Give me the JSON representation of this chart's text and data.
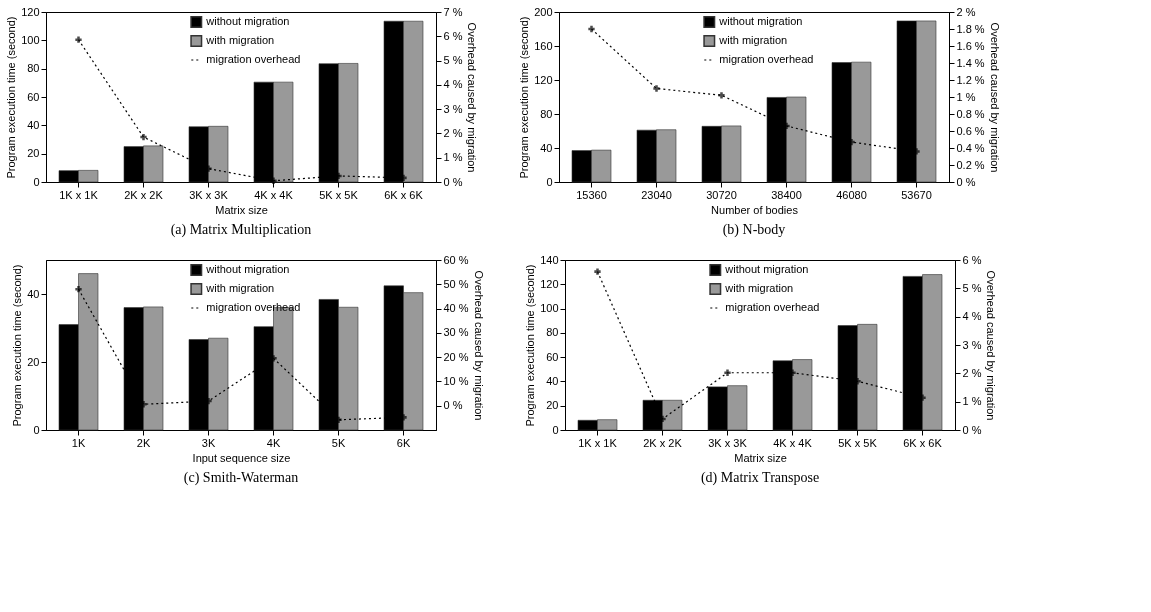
{
  "chart_data": [
    {
      "type": "bar",
      "title": "(a) Matrix Multiplication",
      "xlabel": "Matrix size",
      "ylabel": "Program execution time (second)",
      "y2label": "Overhead caused by migration",
      "categories": [
        "1K x 1K",
        "2K x 2K",
        "3K x 3K",
        "4K x 4K",
        "5K x 5K",
        "6K x 6K"
      ],
      "series": [
        {
          "name": "without migration",
          "color": "#000000",
          "values": [
            8,
            25,
            39,
            70.5,
            83.5,
            113.5
          ]
        },
        {
          "name": "with migration",
          "color": "#999999",
          "values": [
            8.2,
            25.5,
            39.3,
            70.5,
            83.7,
            113.5
          ]
        },
        {
          "name": "migration overhead",
          "color": "#000000",
          "type": "line",
          "axis": "y2",
          "values": [
            5.86,
            1.85,
            0.55,
            0.05,
            0.25,
            0.17
          ]
        }
      ],
      "ylim": [
        0,
        120
      ],
      "yticks": [
        0,
        20,
        40,
        60,
        80,
        100,
        120
      ],
      "y2lim": [
        0,
        7
      ],
      "y2ticks": [
        {
          "value": 0,
          "label": "0 %"
        },
        {
          "value": 1,
          "label": "1 %"
        },
        {
          "value": 2,
          "label": "2 %"
        },
        {
          "value": 3,
          "label": "3 %"
        },
        {
          "value": 4,
          "label": "4 %"
        },
        {
          "value": 5,
          "label": "5 %"
        },
        {
          "value": 6,
          "label": "6 %"
        },
        {
          "value": 7,
          "label": "7 %"
        }
      ],
      "legend": "top",
      "marker": "cross",
      "line_style": "dotted"
    },
    {
      "type": "bar",
      "title": "(b) N-body",
      "xlabel": "Number of bodies",
      "ylabel": "Program execution time (second)",
      "y2label": "Overhead caused by migration",
      "categories": [
        "15360",
        "23040",
        "30720",
        "38400",
        "46080",
        "53670"
      ],
      "series": [
        {
          "name": "without migration",
          "color": "#000000",
          "values": [
            37,
            61,
            65.5,
            99.5,
            140.5,
            189.5
          ]
        },
        {
          "name": "with migration",
          "color": "#999999",
          "values": [
            37.5,
            61.5,
            66,
            100,
            141,
            189.5
          ]
        },
        {
          "name": "migration overhead",
          "color": "#000000",
          "type": "line",
          "axis": "y2",
          "values": [
            1.8,
            1.1,
            1.02,
            0.66,
            0.47,
            0.36
          ]
        }
      ],
      "ylim": [
        0,
        200
      ],
      "yticks": [
        0,
        40,
        80,
        120,
        160,
        200
      ],
      "y2lim": [
        0,
        2
      ],
      "y2ticks": [
        {
          "value": 0,
          "label": "0 %"
        },
        {
          "value": 0.2,
          "label": "0.2 %"
        },
        {
          "value": 0.4,
          "label": "0.4 %"
        },
        {
          "value": 0.6,
          "label": "0.6 %"
        },
        {
          "value": 0.8,
          "label": "0.8 %"
        },
        {
          "value": 1,
          "label": "1 %"
        },
        {
          "value": 1.2,
          "label": "1.2 %"
        },
        {
          "value": 1.4,
          "label": "1.4 %"
        },
        {
          "value": 1.6,
          "label": "1.6 %"
        },
        {
          "value": 1.8,
          "label": "1.8 %"
        },
        {
          "value": 2,
          "label": "2 %"
        }
      ],
      "legend": "top",
      "marker": "cross",
      "line_style": "dotted"
    },
    {
      "type": "bar",
      "title": "(c) Smith-Waterman",
      "xlabel": "Input sequence size",
      "ylabel": "Program execution time (second)",
      "y2label": "Overhead caused by migration",
      "categories": [
        "1K",
        "2K",
        "3K",
        "4K",
        "5K",
        "6K"
      ],
      "series": [
        {
          "name": "without migration",
          "color": "#000000",
          "values": [
            31,
            36,
            26.6,
            30.4,
            38.4,
            42.4
          ]
        },
        {
          "name": "with migration",
          "color": "#999999",
          "values": [
            46,
            36.2,
            27,
            36,
            36.1,
            40.4
          ]
        },
        {
          "name": "migration overhead",
          "color": "#000000",
          "type": "line",
          "axis": "y2",
          "values": [
            48,
            0.6,
            1.9,
            19.5,
            -5.8,
            -4.8
          ]
        }
      ],
      "ylim": [
        0,
        50
      ],
      "yticks": [
        0,
        20,
        40
      ],
      "y2lim": [
        -10,
        60
      ],
      "y2ticks": [
        {
          "value": 0,
          "label": "0 %"
        },
        {
          "value": 10,
          "label": "10 %"
        },
        {
          "value": 20,
          "label": "20 %"
        },
        {
          "value": 30,
          "label": "30 %"
        },
        {
          "value": 40,
          "label": "40 %"
        },
        {
          "value": 50,
          "label": "50 %"
        },
        {
          "value": 60,
          "label": "60 %"
        }
      ],
      "legend": "top",
      "marker": "cross",
      "line_style": "dotted"
    },
    {
      "type": "bar",
      "title": "(d) Matrix Transpose",
      "xlabel": "Matrix size",
      "ylabel": "Program execution time (second)",
      "y2label": "Overhead caused by migration",
      "categories": [
        "1K x 1K",
        "2K x 2K",
        "3K x 3K",
        "4K x 4K",
        "5K x 5K",
        "6K x 6K"
      ],
      "series": [
        {
          "name": "without migration",
          "color": "#000000",
          "values": [
            8,
            24.5,
            35.5,
            57,
            86,
            126.5
          ]
        },
        {
          "name": "with migration",
          "color": "#999999",
          "values": [
            8.5,
            24.5,
            36.5,
            58,
            87,
            128
          ]
        },
        {
          "name": "migration overhead",
          "color": "#000000",
          "type": "line",
          "axis": "y2",
          "values": [
            5.59,
            0.39,
            2.02,
            2.02,
            1.72,
            1.14
          ]
        }
      ],
      "ylim": [
        0,
        140
      ],
      "yticks": [
        0,
        20,
        40,
        60,
        80,
        100,
        120,
        140
      ],
      "y2lim": [
        0,
        6
      ],
      "y2ticks": [
        {
          "value": 0,
          "label": "0 %"
        },
        {
          "value": 1,
          "label": "1 %"
        },
        {
          "value": 2,
          "label": "2 %"
        },
        {
          "value": 3,
          "label": "3 %"
        },
        {
          "value": 4,
          "label": "4 %"
        },
        {
          "value": 5,
          "label": "5 %"
        },
        {
          "value": 6,
          "label": "6 %"
        }
      ],
      "legend": "top",
      "marker": "cross",
      "line_style": "dotted"
    }
  ]
}
